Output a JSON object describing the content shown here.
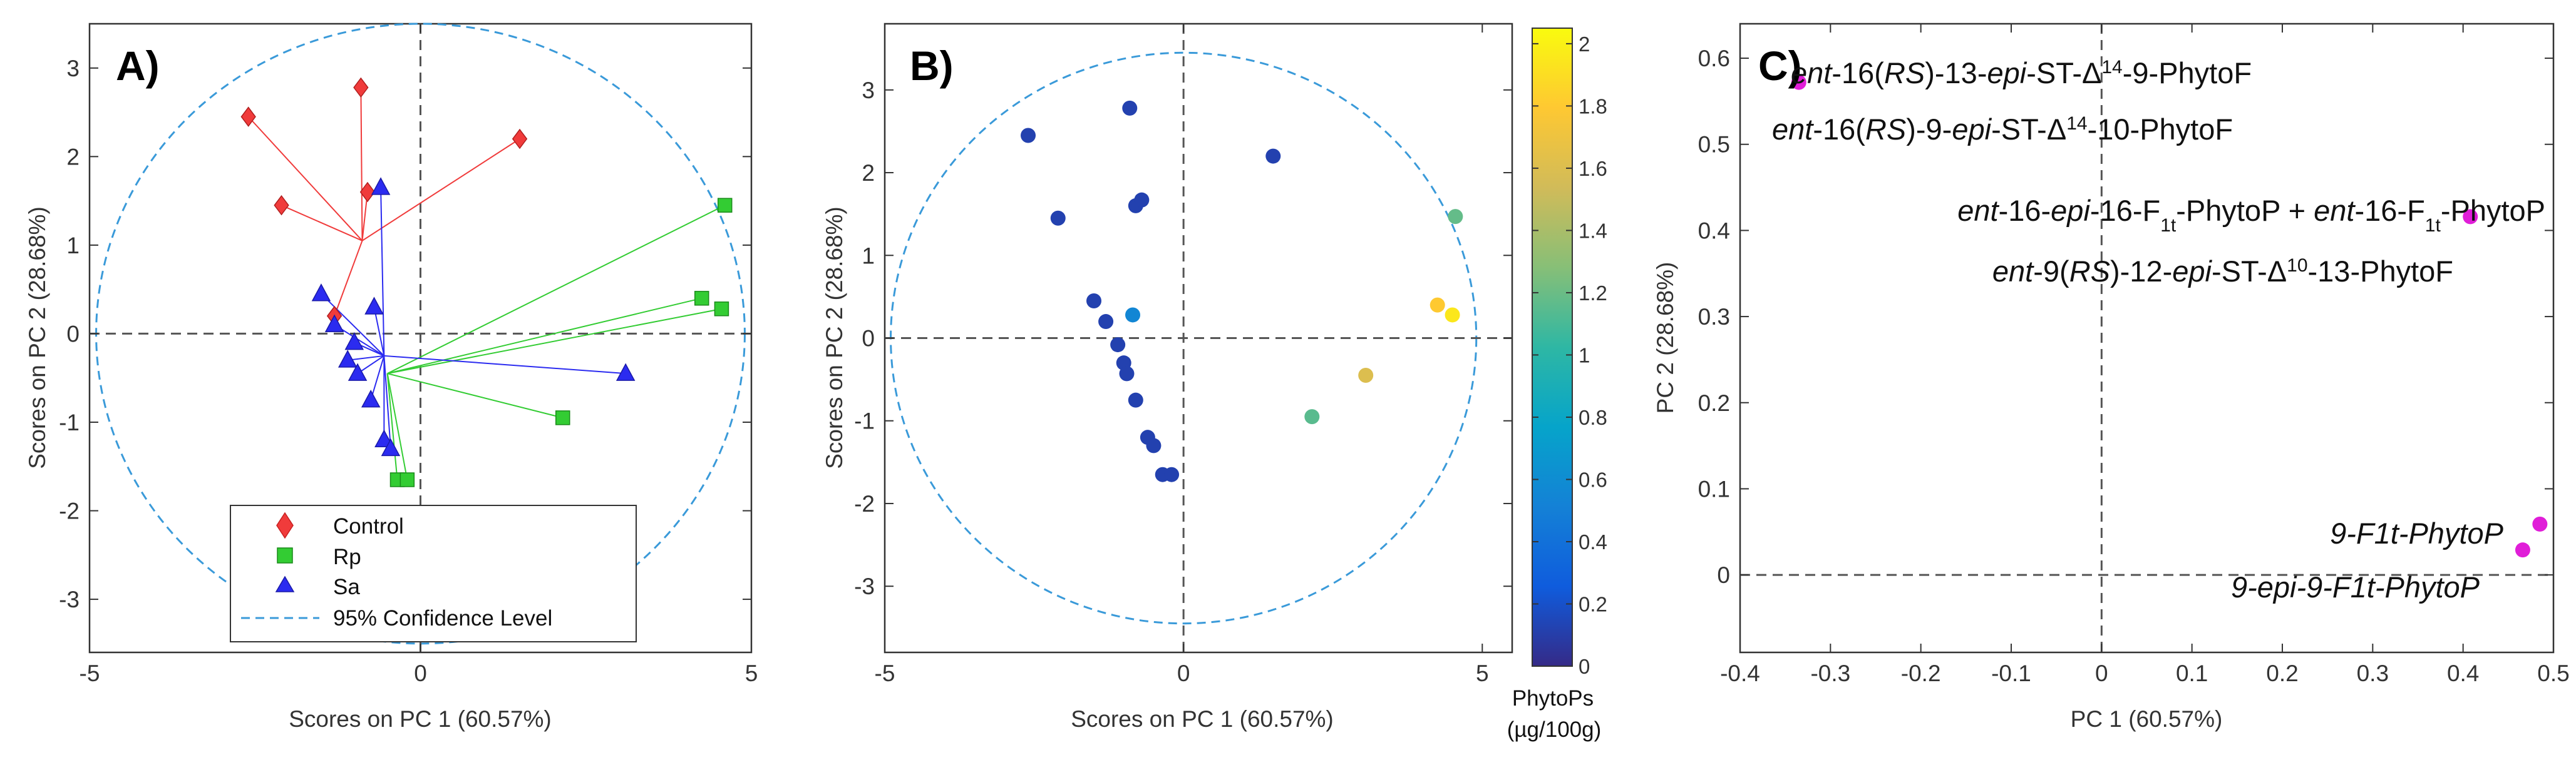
{
  "chart_data": [
    {
      "type": "scatter",
      "panel_label": "A)",
      "xlabel": "Scores on PC 1 (60.57%)",
      "ylabel": "Scores on PC 2 (28.68%)",
      "xlim": [
        -5,
        5
      ],
      "ylim": [
        -3.6,
        3.5
      ],
      "xticks": [
        -5,
        0,
        5
      ],
      "yticks": [
        -3,
        -2,
        -1,
        0,
        1,
        2,
        3
      ],
      "xtick_labels": [
        "-5",
        "0",
        "5"
      ],
      "ytick_labels": [
        "-3",
        "-2",
        "-1",
        "0",
        "1",
        "2",
        "3"
      ],
      "confidence_ellipse": {
        "center": [
          0,
          0
        ],
        "rx": 4.9,
        "ry": 3.5,
        "color": "#3a9ad9"
      },
      "series": [
        {
          "name": "Control",
          "marker": "diamond",
          "color": "#f03b3b",
          "centroid": [
            -0.88,
            1.05
          ],
          "x": [
            -2.6,
            -2.1,
            -0.9,
            -0.8,
            -1.3,
            1.5
          ],
          "y": [
            2.45,
            1.45,
            2.78,
            1.6,
            0.2,
            2.2
          ]
        },
        {
          "name": "Rp",
          "marker": "square",
          "color": "#33cc33",
          "centroid": [
            -0.5,
            -0.45
          ],
          "x": [
            4.6,
            4.25,
            4.55,
            2.15,
            -0.35,
            -0.2
          ],
          "y": [
            1.45,
            0.4,
            0.28,
            -0.95,
            -1.65,
            -1.65
          ]
        },
        {
          "name": "Sa",
          "marker": "triangle",
          "color": "#2b2bf0",
          "centroid": [
            -0.55,
            -0.25
          ],
          "x": [
            -0.6,
            -1.5,
            -0.7,
            -1.3,
            -1.0,
            -1.1,
            -0.95,
            -0.75,
            3.1,
            -0.55,
            -0.45
          ],
          "y": [
            1.65,
            0.45,
            0.3,
            0.1,
            -0.1,
            -0.3,
            -0.45,
            -0.75,
            -0.45,
            -1.2,
            -1.3
          ]
        }
      ],
      "legend": {
        "position": "bottom",
        "entries": [
          {
            "label": "Control",
            "marker": "diamond",
            "color": "#f03b3b"
          },
          {
            "label": "Rp",
            "marker": "square",
            "color": "#33cc33"
          },
          {
            "label": "Sa",
            "marker": "triangle",
            "color": "#2b2bf0"
          },
          {
            "label": "95% Confidence Level",
            "marker": "dashed-line",
            "color": "#3a9ad9"
          }
        ]
      }
    },
    {
      "type": "scatter",
      "panel_label": "B)",
      "xlabel": "Scores on PC 1 (60.57%)",
      "ylabel": "Scores on PC 2 (28.68%)",
      "xlim": [
        -5,
        5.5
      ],
      "ylim": [
        -3.8,
        3.8
      ],
      "xticks": [
        -5,
        0,
        5
      ],
      "yticks": [
        -3,
        -2,
        -1,
        0,
        1,
        2,
        3
      ],
      "xtick_labels": [
        "-5",
        "0",
        "5"
      ],
      "ytick_labels": [
        "-3",
        "-2",
        "-1",
        "0",
        "1",
        "2",
        "3"
      ],
      "confidence_ellipse": {
        "center": [
          0,
          0
        ],
        "rx": 4.9,
        "ry": 3.45,
        "color": "#3a9ad9"
      },
      "points": {
        "x": [
          -2.6,
          -2.1,
          -0.9,
          -0.8,
          -0.7,
          1.5,
          -1.5,
          -1.3,
          -0.85,
          -1.1,
          -1.0,
          -0.95,
          -0.8,
          -0.6,
          -0.5,
          -0.35,
          -0.2,
          4.55,
          4.25,
          4.5,
          3.05,
          2.15
        ],
        "y": [
          2.45,
          1.45,
          2.78,
          1.6,
          1.67,
          2.2,
          0.45,
          0.2,
          0.28,
          -0.08,
          -0.3,
          -0.43,
          -0.75,
          -1.2,
          -1.3,
          -1.65,
          -1.65,
          1.47,
          0.4,
          0.28,
          -0.45,
          -0.95
        ],
        "values": [
          0.12,
          0.12,
          0.12,
          0.12,
          0.12,
          0.12,
          0.12,
          0.12,
          0.55,
          0.12,
          0.12,
          0.12,
          0.12,
          0.12,
          0.12,
          0.12,
          0.12,
          1.18,
          1.8,
          1.95,
          1.6,
          1.15
        ]
      },
      "colorbar": {
        "label": "PhytoPs",
        "units": "(µg/100g)",
        "range": [
          0,
          2.05
        ],
        "ticks": [
          0,
          0.2,
          0.4,
          0.6,
          0.8,
          1,
          1.2,
          1.4,
          1.6,
          1.8,
          2
        ],
        "tick_labels": [
          "0",
          "0.2",
          "0.4",
          "0.6",
          "0.8",
          "1",
          "1.2",
          "1.4",
          "1.6",
          "1.8",
          "2"
        ],
        "colormap": "parula"
      }
    },
    {
      "type": "scatter",
      "panel_label": "C)",
      "xlabel": "PC 1 (60.57%)",
      "ylabel": "PC 2 (28.68%)",
      "xlim": [
        -0.4,
        0.5
      ],
      "ylim": [
        -0.09,
        0.64
      ],
      "xticks": [
        -0.4,
        -0.3,
        -0.2,
        -0.1,
        0,
        0.1,
        0.2,
        0.3,
        0.4,
        0.5
      ],
      "yticks": [
        0,
        0.1,
        0.2,
        0.3,
        0.4,
        0.5,
        0.6
      ],
      "xtick_labels": [
        "-0.4",
        "-0.3",
        "-0.2",
        "-0.1",
        "0",
        "0.1",
        "0.2",
        "0.3",
        "0.4",
        "0.5"
      ],
      "ytick_labels": [
        "0",
        "0.1",
        "0.2",
        "0.3",
        "0.4",
        "0.5",
        "0.6"
      ],
      "points": {
        "x": [
          -0.335,
          0.408,
          0.485,
          0.466
        ],
        "y": [
          0.572,
          0.416,
          0.059,
          0.029
        ],
        "color": "#e01ed8"
      },
      "annotations": [
        {
          "pre": "",
          "i1": "ent",
          "m1": "-16(",
          "i2": "RS",
          "m2": ")-13-",
          "i3": "epi",
          "m3": "-ST-Δ",
          "sup": "14",
          "post": "-9-PhytoF"
        },
        {
          "pre": "",
          "i1": "ent",
          "m1": "-16(",
          "i2": "RS",
          "m2": ")-9-",
          "i3": "epi",
          "m3": "-ST-Δ",
          "sup": "14",
          "post": "-10-PhytoF"
        },
        {
          "i1": "ent",
          "m1": "-16-",
          "i2": "epi",
          "m2": "-16-F",
          "sub1": "1t",
          "m3": "-PhytoP + ",
          "i3": "ent",
          "m4": "-16-F",
          "sub2": "1t",
          "post": "-PhytoP"
        },
        {
          "i1": "ent",
          "m1": "-9(",
          "i2": "RS",
          "m2": ")-12-",
          "i3": "epi",
          "m3": "-ST-Δ",
          "sup": "10",
          "post": "-13-PhytoF"
        },
        {
          "text": "9-F1t-PhytoP"
        },
        {
          "text": "9-epi-9-F1t-PhytoP"
        }
      ]
    }
  ]
}
